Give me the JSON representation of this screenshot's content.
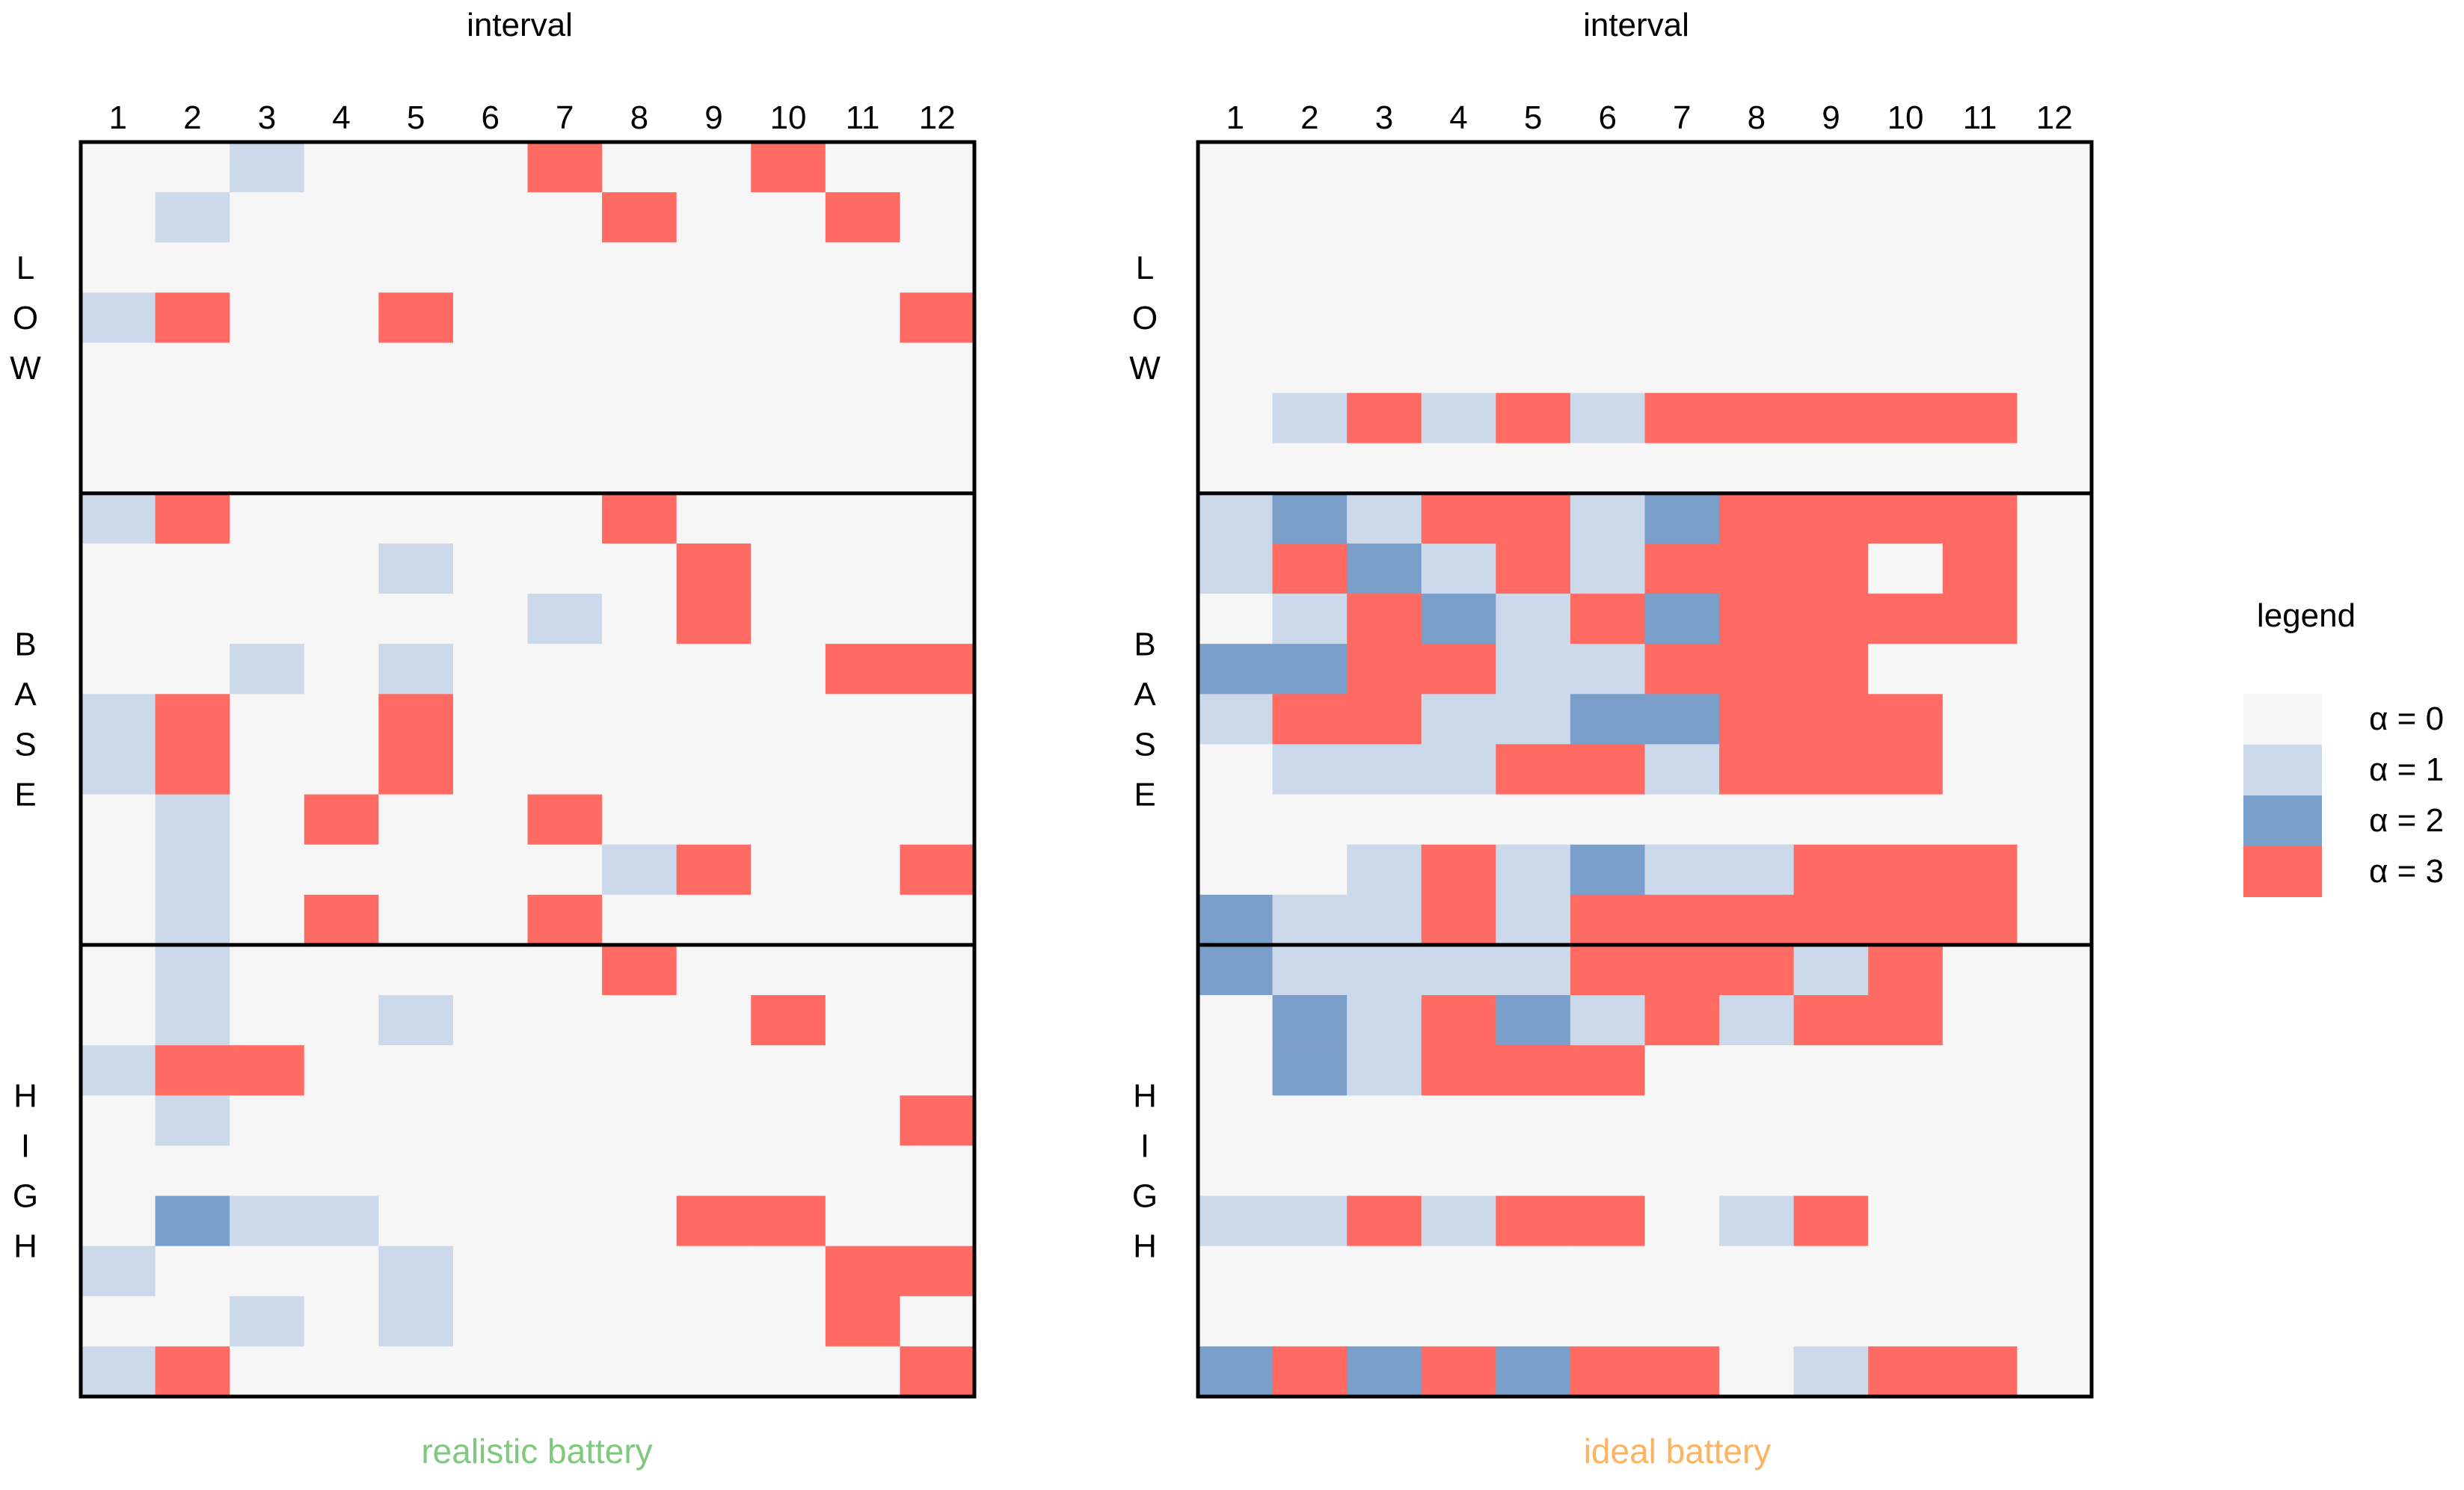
{
  "chart_data": [
    {
      "type": "heatmap",
      "title": "interval",
      "subtitle": "realistic battery",
      "subtitle_color": "#7fc97f",
      "xlabel": "interval",
      "x_ticks": [
        "1",
        "2",
        "3",
        "4",
        "5",
        "6",
        "7",
        "8",
        "9",
        "10",
        "11",
        "12"
      ],
      "groups": [
        {
          "name": "LOW",
          "letters": [
            "L",
            "O",
            "W"
          ],
          "row_count": 7
        },
        {
          "name": "BASE",
          "letters": [
            "B",
            "A",
            "S",
            "E"
          ],
          "row_count": 9
        },
        {
          "name": "HIGH",
          "letters": [
            "H",
            "I",
            "G",
            "H"
          ],
          "row_count": 9
        }
      ],
      "matrix": [
        [
          0,
          0,
          1,
          0,
          0,
          0,
          3,
          0,
          0,
          3,
          0,
          0
        ],
        [
          0,
          1,
          0,
          0,
          0,
          0,
          0,
          3,
          0,
          0,
          3,
          0
        ],
        [
          0,
          0,
          0,
          0,
          0,
          0,
          0,
          0,
          0,
          0,
          0,
          0
        ],
        [
          1,
          3,
          0,
          0,
          3,
          0,
          0,
          0,
          0,
          0,
          0,
          3
        ],
        [
          0,
          0,
          0,
          0,
          0,
          0,
          0,
          0,
          0,
          0,
          0,
          0
        ],
        [
          0,
          0,
          0,
          0,
          0,
          0,
          0,
          0,
          0,
          0,
          0,
          0
        ],
        [
          0,
          0,
          0,
          0,
          0,
          0,
          0,
          0,
          0,
          0,
          0,
          0
        ],
        [
          1,
          3,
          0,
          0,
          0,
          0,
          0,
          3,
          0,
          0,
          0,
          0
        ],
        [
          0,
          0,
          0,
          0,
          1,
          0,
          0,
          0,
          3,
          0,
          0,
          0
        ],
        [
          0,
          0,
          0,
          0,
          0,
          0,
          1,
          0,
          3,
          0,
          0,
          0
        ],
        [
          0,
          0,
          1,
          0,
          1,
          0,
          0,
          0,
          0,
          0,
          3,
          3
        ],
        [
          1,
          3,
          0,
          0,
          3,
          0,
          0,
          0,
          0,
          0,
          0,
          0
        ],
        [
          1,
          3,
          0,
          0,
          3,
          0,
          0,
          0,
          0,
          0,
          0,
          0
        ],
        [
          0,
          1,
          0,
          3,
          0,
          0,
          3,
          0,
          0,
          0,
          0,
          0
        ],
        [
          0,
          1,
          0,
          0,
          0,
          0,
          0,
          1,
          3,
          0,
          0,
          3
        ],
        [
          0,
          1,
          0,
          3,
          0,
          0,
          3,
          0,
          0,
          0,
          0,
          0
        ],
        [
          0,
          1,
          0,
          0,
          0,
          0,
          0,
          3,
          0,
          0,
          0,
          0
        ],
        [
          0,
          1,
          0,
          0,
          1,
          0,
          0,
          0,
          0,
          3,
          0,
          0
        ],
        [
          1,
          3,
          3,
          0,
          0,
          0,
          0,
          0,
          0,
          0,
          0,
          0
        ],
        [
          0,
          1,
          0,
          0,
          0,
          0,
          0,
          0,
          0,
          0,
          0,
          3
        ],
        [
          0,
          0,
          0,
          0,
          0,
          0,
          0,
          0,
          0,
          0,
          0,
          0
        ],
        [
          0,
          2,
          1,
          1,
          0,
          0,
          0,
          0,
          3,
          3,
          0,
          0
        ],
        [
          1,
          0,
          0,
          0,
          1,
          0,
          0,
          0,
          0,
          0,
          3,
          3
        ],
        [
          0,
          0,
          1,
          0,
          1,
          0,
          0,
          0,
          0,
          0,
          3,
          0
        ],
        [
          1,
          3,
          0,
          0,
          0,
          0,
          0,
          0,
          0,
          0,
          0,
          3
        ]
      ]
    },
    {
      "type": "heatmap",
      "title": "interval",
      "subtitle": "ideal battery",
      "subtitle_color": "#fdb462",
      "xlabel": "interval",
      "x_ticks": [
        "1",
        "2",
        "3",
        "4",
        "5",
        "6",
        "7",
        "8",
        "9",
        "10",
        "11",
        "12"
      ],
      "groups": [
        {
          "name": "LOW",
          "letters": [
            "L",
            "O",
            "W"
          ],
          "row_count": 7
        },
        {
          "name": "BASE",
          "letters": [
            "B",
            "A",
            "S",
            "E"
          ],
          "row_count": 9
        },
        {
          "name": "HIGH",
          "letters": [
            "H",
            "I",
            "G",
            "H"
          ],
          "row_count": 9
        }
      ],
      "matrix": [
        [
          0,
          0,
          0,
          0,
          0,
          0,
          0,
          0,
          0,
          0,
          0,
          0
        ],
        [
          0,
          0,
          0,
          0,
          0,
          0,
          0,
          0,
          0,
          0,
          0,
          0
        ],
        [
          0,
          0,
          0,
          0,
          0,
          0,
          0,
          0,
          0,
          0,
          0,
          0
        ],
        [
          0,
          0,
          0,
          0,
          0,
          0,
          0,
          0,
          0,
          0,
          0,
          0
        ],
        [
          0,
          0,
          0,
          0,
          0,
          0,
          0,
          0,
          0,
          0,
          0,
          0
        ],
        [
          0,
          1,
          3,
          1,
          3,
          1,
          3,
          3,
          3,
          3,
          3,
          0
        ],
        [
          0,
          0,
          0,
          0,
          0,
          0,
          0,
          0,
          0,
          0,
          0,
          0
        ],
        [
          1,
          2,
          1,
          3,
          3,
          1,
          2,
          3,
          3,
          3,
          3,
          0
        ],
        [
          1,
          3,
          2,
          1,
          3,
          1,
          3,
          3,
          3,
          0,
          3,
          0
        ],
        [
          0,
          1,
          3,
          2,
          1,
          3,
          2,
          3,
          3,
          3,
          3,
          0
        ],
        [
          2,
          2,
          3,
          3,
          1,
          1,
          3,
          3,
          3,
          0,
          0,
          0
        ],
        [
          1,
          3,
          3,
          1,
          1,
          2,
          2,
          3,
          3,
          3,
          0,
          0
        ],
        [
          0,
          1,
          1,
          1,
          3,
          3,
          1,
          3,
          3,
          3,
          0,
          0
        ],
        [
          0,
          0,
          0,
          0,
          0,
          0,
          0,
          0,
          0,
          0,
          0,
          0
        ],
        [
          0,
          0,
          1,
          3,
          1,
          2,
          1,
          1,
          3,
          3,
          3,
          0
        ],
        [
          2,
          1,
          1,
          3,
          1,
          3,
          3,
          3,
          3,
          3,
          3,
          0
        ],
        [
          2,
          1,
          1,
          1,
          1,
          3,
          3,
          3,
          1,
          3,
          0,
          0
        ],
        [
          0,
          2,
          1,
          3,
          2,
          1,
          3,
          1,
          3,
          3,
          0,
          0
        ],
        [
          0,
          2,
          1,
          3,
          3,
          3,
          0,
          0,
          0,
          0,
          0,
          0
        ],
        [
          0,
          0,
          0,
          0,
          0,
          0,
          0,
          0,
          0,
          0,
          0,
          0
        ],
        [
          0,
          0,
          0,
          0,
          0,
          0,
          0,
          0,
          0,
          0,
          0,
          0
        ],
        [
          1,
          1,
          3,
          1,
          3,
          3,
          0,
          1,
          3,
          0,
          0,
          0
        ],
        [
          0,
          0,
          0,
          0,
          0,
          0,
          0,
          0,
          0,
          0,
          0,
          0
        ],
        [
          0,
          0,
          0,
          0,
          0,
          0,
          0,
          0,
          0,
          0,
          0,
          0
        ],
        [
          2,
          3,
          2,
          3,
          2,
          3,
          3,
          0,
          1,
          3,
          3,
          0
        ]
      ]
    }
  ],
  "legend": {
    "title": "legend",
    "items": [
      {
        "label": "α = 0",
        "value": 0,
        "color": "#f6f6f6"
      },
      {
        "label": "α = 1",
        "value": 1,
        "color": "#ccd9ea"
      },
      {
        "label": "α = 2",
        "value": 2,
        "color": "#7b9fcb"
      },
      {
        "label": "α = 3",
        "value": 3,
        "color": "#ff6a63"
      }
    ]
  }
}
